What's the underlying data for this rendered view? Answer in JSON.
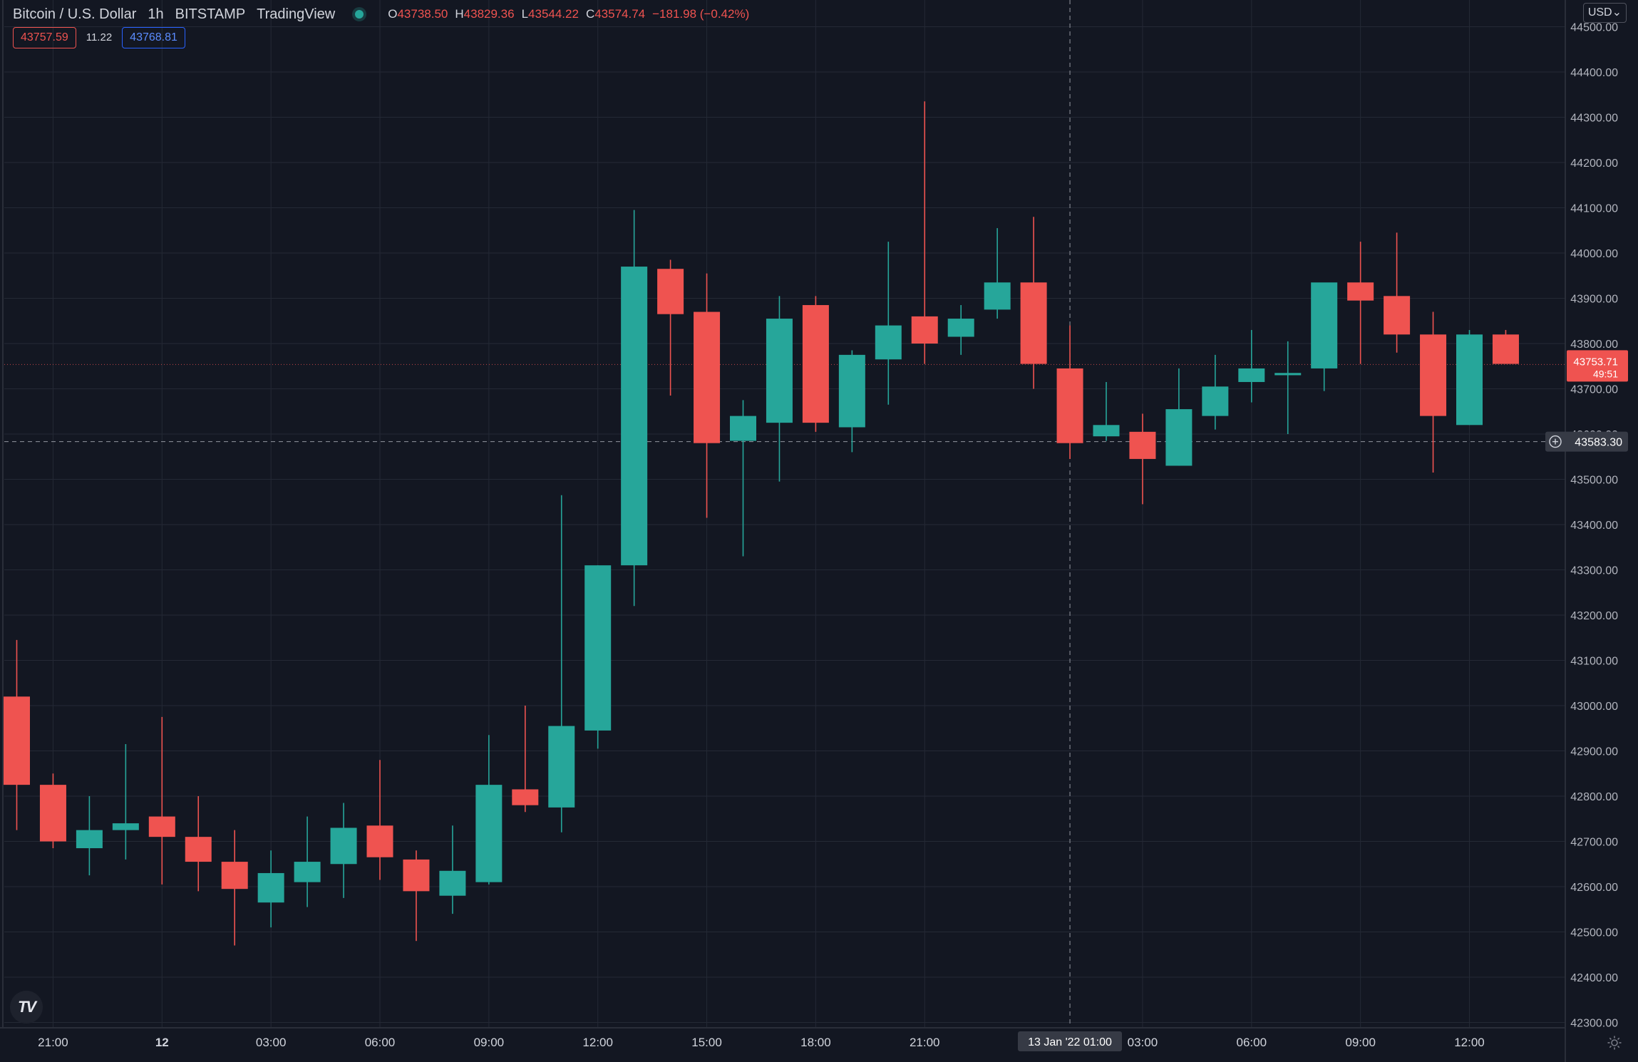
{
  "header": {
    "symbol": "Bitcoin / U.S. Dollar",
    "interval": "1h",
    "exchange": "BITSTAMP",
    "provider": "TradingView",
    "ohlc": {
      "open_label": "O",
      "open": "43738.50",
      "high_label": "H",
      "high": "43829.36",
      "low_label": "L",
      "low": "43544.22",
      "close_label": "C",
      "close": "43574.74",
      "change": "−181.98 (−0.42%)"
    }
  },
  "quote": {
    "sell": "43757.59",
    "spread": "11.22",
    "buy": "43768.81"
  },
  "currency_button": "USD⌄",
  "colors": {
    "background": "#131722",
    "up": "#26a69a",
    "down": "#ef5350",
    "grid": "#242935",
    "text": "#d1d4dc"
  },
  "logo_text": "TV",
  "chart_data": {
    "type": "candlestick",
    "ylim": [
      42300,
      44500
    ],
    "y_ticks": [
      42300,
      42400,
      42500,
      42600,
      42700,
      42800,
      42900,
      43000,
      43100,
      43200,
      43300,
      43400,
      43500,
      43600,
      43700,
      43800,
      43900,
      44000,
      44100,
      44200,
      44300,
      44400,
      44500
    ],
    "y_tick_labels": [
      "42300.00",
      "42400.00",
      "42500.00",
      "42600.00",
      "42700.00",
      "42800.00",
      "42900.00",
      "43000.00",
      "43100.00",
      "43200.00",
      "43300.00",
      "43400.00",
      "43500.00",
      "43600.00",
      "43700.00",
      "43800.00",
      "43900.00",
      "44000.00",
      "44100.00",
      "44200.00",
      "44300.00",
      "44400.00",
      "44500.00"
    ],
    "x_ticks": [
      {
        "index": 1,
        "label": "21:00",
        "bold": false
      },
      {
        "index": 4,
        "label": "12",
        "bold": true
      },
      {
        "index": 7,
        "label": "03:00",
        "bold": false
      },
      {
        "index": 10,
        "label": "06:00",
        "bold": false
      },
      {
        "index": 13,
        "label": "09:00",
        "bold": false
      },
      {
        "index": 16,
        "label": "12:00",
        "bold": false
      },
      {
        "index": 19,
        "label": "15:00",
        "bold": false
      },
      {
        "index": 22,
        "label": "18:00",
        "bold": false
      },
      {
        "index": 25,
        "label": "21:00",
        "bold": false
      },
      {
        "index": 31,
        "label": "03:00",
        "bold": false
      },
      {
        "index": 34,
        "label": "06:00",
        "bold": false
      },
      {
        "index": 37,
        "label": "09:00",
        "bold": false
      },
      {
        "index": 40,
        "label": "12:00",
        "bold": false
      }
    ],
    "crosshair": {
      "index": 29,
      "price": 43583.3,
      "price_label": "43583.30",
      "time_label": "13 Jan '22   01:00"
    },
    "last_price": {
      "value": 43753.71,
      "label": "43753.71",
      "countdown": "49:51"
    },
    "candles": [
      {
        "o": 43020,
        "h": 43145,
        "l": 42725,
        "c": 42825
      },
      {
        "o": 42825,
        "h": 42850,
        "l": 42685,
        "c": 42700
      },
      {
        "o": 42685,
        "h": 42800,
        "l": 42625,
        "c": 42725
      },
      {
        "o": 42725,
        "h": 42915,
        "l": 42660,
        "c": 42740
      },
      {
        "o": 42755,
        "h": 42975,
        "l": 42605,
        "c": 42710
      },
      {
        "o": 42710,
        "h": 42800,
        "l": 42590,
        "c": 42655
      },
      {
        "o": 42655,
        "h": 42725,
        "l": 42470,
        "c": 42595
      },
      {
        "o": 42565,
        "h": 42680,
        "l": 42510,
        "c": 42630
      },
      {
        "o": 42610,
        "h": 42755,
        "l": 42555,
        "c": 42655
      },
      {
        "o": 42650,
        "h": 42785,
        "l": 42575,
        "c": 42730
      },
      {
        "o": 42735,
        "h": 42880,
        "l": 42615,
        "c": 42665
      },
      {
        "o": 42660,
        "h": 42680,
        "l": 42480,
        "c": 42590
      },
      {
        "o": 42580,
        "h": 42735,
        "l": 42540,
        "c": 42635
      },
      {
        "o": 42610,
        "h": 42935,
        "l": 42605,
        "c": 42825
      },
      {
        "o": 42815,
        "h": 43000,
        "l": 42765,
        "c": 42780
      },
      {
        "o": 42775,
        "h": 43465,
        "l": 42720,
        "c": 42955
      },
      {
        "o": 42945,
        "h": 43310,
        "l": 42905,
        "c": 43310
      },
      {
        "o": 43310,
        "h": 44095,
        "l": 43220,
        "c": 43970
      },
      {
        "o": 43965,
        "h": 43985,
        "l": 43685,
        "c": 43865
      },
      {
        "o": 43870,
        "h": 43955,
        "l": 43415,
        "c": 43580
      },
      {
        "o": 43585,
        "h": 43675,
        "l": 43330,
        "c": 43640
      },
      {
        "o": 43625,
        "h": 43905,
        "l": 43495,
        "c": 43855
      },
      {
        "o": 43885,
        "h": 43905,
        "l": 43605,
        "c": 43625
      },
      {
        "o": 43615,
        "h": 43785,
        "l": 43560,
        "c": 43775
      },
      {
        "o": 43765,
        "h": 44025,
        "l": 43665,
        "c": 43840
      },
      {
        "o": 43860,
        "h": 44335,
        "l": 43755,
        "c": 43800
      },
      {
        "o": 43815,
        "h": 43885,
        "l": 43775,
        "c": 43855
      },
      {
        "o": 43875,
        "h": 44055,
        "l": 43855,
        "c": 43935
      },
      {
        "o": 43935,
        "h": 44080,
        "l": 43700,
        "c": 43755
      },
      {
        "o": 43745,
        "h": 43840,
        "l": 43545,
        "c": 43580
      },
      {
        "o": 43595,
        "h": 43715,
        "l": 43585,
        "c": 43620
      },
      {
        "o": 43605,
        "h": 43645,
        "l": 43445,
        "c": 43545
      },
      {
        "o": 43530,
        "h": 43745,
        "l": 43530,
        "c": 43655
      },
      {
        "o": 43640,
        "h": 43775,
        "l": 43610,
        "c": 43705
      },
      {
        "o": 43715,
        "h": 43830,
        "l": 43670,
        "c": 43745
      },
      {
        "o": 43730,
        "h": 43805,
        "l": 43600,
        "c": 43735
      },
      {
        "o": 43745,
        "h": 43930,
        "l": 43695,
        "c": 43935
      },
      {
        "o": 43935,
        "h": 44025,
        "l": 43755,
        "c": 43895
      },
      {
        "o": 43905,
        "h": 44045,
        "l": 43780,
        "c": 43820
      },
      {
        "o": 43820,
        "h": 43870,
        "l": 43515,
        "c": 43640
      },
      {
        "o": 43620,
        "h": 43830,
        "l": 43620,
        "c": 43820
      },
      {
        "o": 43820,
        "h": 43830,
        "l": 43755,
        "c": 43755
      }
    ]
  }
}
